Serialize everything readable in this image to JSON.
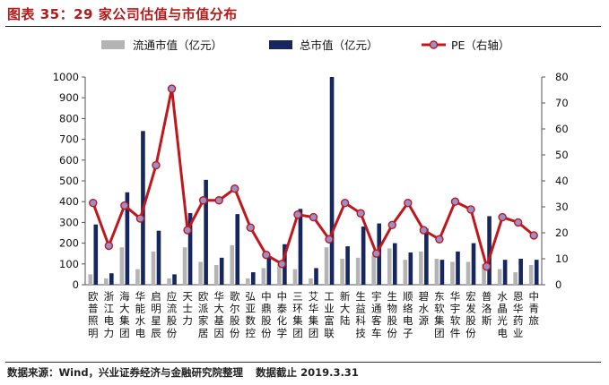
{
  "title": "图表 35：29 家公司估值与市值分布",
  "source": {
    "text": "数据来源：Wind，兴业证券经济与金融研究院整理",
    "cutoff": "数据截止 2019.3.31"
  },
  "colors": {
    "title": "#b41a18",
    "float_bar": "#b4b4b4",
    "total_bar": "#16265e",
    "pe_line": "#c0171d",
    "pe_marker": "#9a8fc8"
  },
  "chart_data": {
    "type": "bar",
    "categories": [
      "欧普照明",
      "浙江电力",
      "海大集团",
      "华能水电",
      "启明星辰",
      "应流股份",
      "天士力",
      "欧派家居",
      "华大基因",
      "歌尔股份",
      "弘亚数控",
      "中鼎股份",
      "中泰化学",
      "三环集团",
      "艾华集团",
      "工业富联",
      "新大陆",
      "生益科技",
      "宇通客车",
      "生物股份",
      "顺络电子",
      "碧水源",
      "东软集团",
      "华宇软件",
      "宏发股份",
      "普洛斯",
      "水晶光电",
      "恩华药业",
      "中青旅"
    ],
    "series": [
      {
        "name": "流通市值（亿元）",
        "kind": "bar",
        "axis": "left",
        "values": [
          50,
          30,
          180,
          75,
          160,
          30,
          180,
          110,
          95,
          190,
          30,
          80,
          100,
          75,
          30,
          180,
          125,
          130,
          140,
          175,
          120,
          160,
          125,
          110,
          110,
          100,
          75,
          60,
          95
        ]
      },
      {
        "name": "总市值（亿元）",
        "kind": "bar",
        "axis": "left",
        "values": [
          290,
          55,
          445,
          740,
          260,
          50,
          345,
          505,
          130,
          340,
          60,
          130,
          195,
          365,
          80,
          1000,
          185,
          280,
          295,
          200,
          155,
          270,
          120,
          160,
          200,
          330,
          120,
          125,
          120
        ]
      },
      {
        "name": "PE（右轴）",
        "kind": "line",
        "axis": "right",
        "values": [
          31.5,
          15,
          30.5,
          25.5,
          46,
          75.5,
          21,
          32.5,
          32.5,
          37,
          22,
          11.5,
          8,
          27,
          26,
          17.5,
          31.5,
          27.5,
          12,
          23,
          31.5,
          21,
          17.5,
          32,
          29,
          7,
          26,
          24,
          19
        ]
      }
    ],
    "ylim_left": [
      0,
      1000
    ],
    "yticks_left": [
      0,
      100,
      200,
      300,
      400,
      500,
      600,
      700,
      800,
      900,
      1000
    ],
    "ylim_right": [
      0,
      80
    ],
    "yticks_right": [
      0,
      10,
      20,
      30,
      40,
      50,
      60,
      70,
      80
    ],
    "grid": false,
    "legend_position": "top"
  }
}
